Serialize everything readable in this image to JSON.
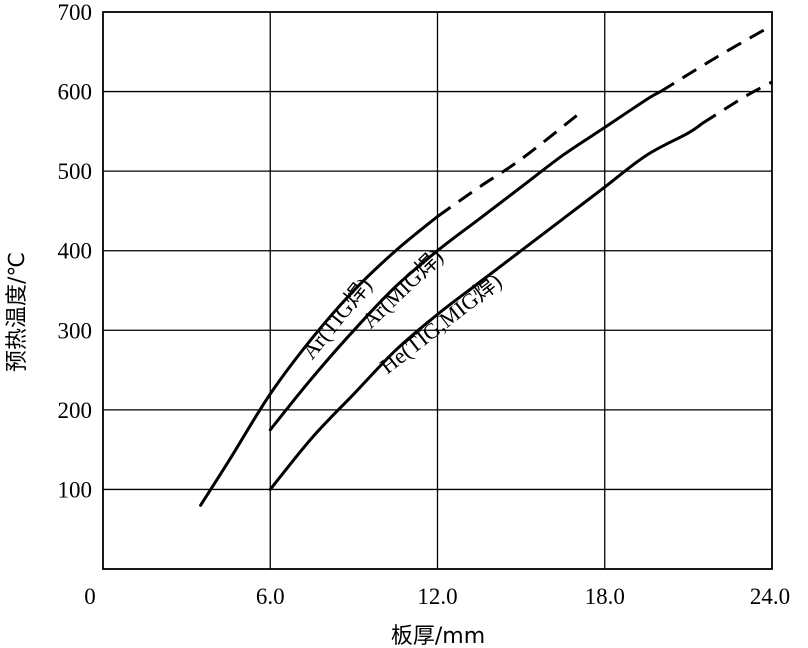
{
  "chart_data": {
    "type": "line",
    "xlabel": "板厚/mm",
    "ylabel": "预热温度/℃",
    "xlim": [
      0,
      24
    ],
    "ylim": [
      0,
      700
    ],
    "x_ticks": [
      {
        "value": 0,
        "label": "0"
      },
      {
        "value": 6,
        "label": "6.0"
      },
      {
        "value": 12,
        "label": "12.0"
      },
      {
        "value": 18,
        "label": "18.0"
      },
      {
        "value": 24,
        "label": "24.0"
      }
    ],
    "y_ticks": [
      {
        "value": 100,
        "label": "100"
      },
      {
        "value": 200,
        "label": "200"
      },
      {
        "value": 300,
        "label": "300"
      },
      {
        "value": 400,
        "label": "400"
      },
      {
        "value": 500,
        "label": "500"
      },
      {
        "value": 600,
        "label": "600"
      },
      {
        "value": 700,
        "label": "700"
      }
    ],
    "grid": true,
    "series": [
      {
        "name": "Ar(TIG焊)",
        "solid": [
          [
            3.5,
            80
          ],
          [
            4.5,
            135
          ],
          [
            6.0,
            220
          ],
          [
            7.5,
            290
          ],
          [
            9.0,
            350
          ],
          [
            10.5,
            400
          ],
          [
            12.0,
            443
          ]
        ],
        "dashed": [
          [
            12.0,
            443
          ],
          [
            13.5,
            480
          ],
          [
            15.0,
            515
          ],
          [
            17.0,
            570
          ]
        ]
      },
      {
        "name": "Ar(MIG焊)",
        "solid": [
          [
            6.0,
            175
          ],
          [
            7.5,
            240
          ],
          [
            9.0,
            300
          ],
          [
            10.5,
            355
          ],
          [
            12.0,
            400
          ],
          [
            13.5,
            440
          ],
          [
            15.0,
            480
          ],
          [
            16.5,
            520
          ],
          [
            18.0,
            555
          ],
          [
            19.5,
            590
          ],
          [
            20.0,
            600
          ]
        ],
        "dashed": [
          [
            20.0,
            600
          ],
          [
            22.0,
            643
          ],
          [
            24.0,
            683
          ]
        ]
      },
      {
        "name": "He(TIG,MIG焊)",
        "solid": [
          [
            6.0,
            100
          ],
          [
            7.5,
            165
          ],
          [
            9.0,
            220
          ],
          [
            10.5,
            275
          ],
          [
            12.0,
            320
          ],
          [
            13.5,
            360
          ],
          [
            15.0,
            400
          ],
          [
            16.5,
            440
          ],
          [
            18.0,
            480
          ],
          [
            19.5,
            520
          ],
          [
            21.0,
            548
          ],
          [
            21.5,
            560
          ]
        ],
        "dashed": [
          [
            21.5,
            560
          ],
          [
            23.0,
            593
          ],
          [
            24.0,
            612
          ]
        ]
      }
    ]
  }
}
